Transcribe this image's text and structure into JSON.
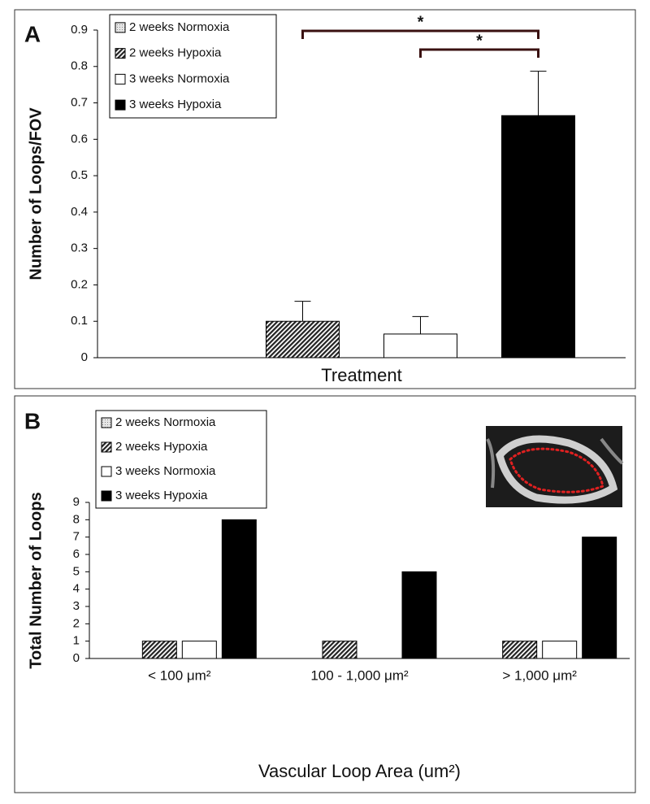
{
  "chart_data": [
    {
      "type": "bar",
      "title": "A",
      "categories": [
        null
      ],
      "series": [
        {
          "name": "2 weeks Normoxia",
          "color": "#d0d0d0",
          "hatch": "dots",
          "values": [
            0
          ],
          "errors": [
            null
          ]
        },
        {
          "name": "2 weeks Hypoxia",
          "color": "#3a3a3a",
          "hatch": "diagonal",
          "values": [
            0.1
          ],
          "errors": [
            0.055
          ]
        },
        {
          "name": "3 weeks Normoxia",
          "color": "#ffffff",
          "values": [
            0.065
          ],
          "errors": [
            0.048
          ]
        },
        {
          "name": "3 weeks Hypoxia",
          "color": "#000000",
          "values": [
            0.665
          ],
          "errors": [
            0.122
          ]
        }
      ],
      "ylabel": "Number of Loops/FOV",
      "xlabel": "Treatment",
      "ylim": [
        0,
        0.9
      ],
      "yticks": [
        0,
        0.1,
        0.2,
        0.3,
        0.4,
        0.5,
        0.6,
        0.7,
        0.8,
        0.9
      ],
      "legend": "top-left",
      "annotations": [
        "*",
        "*"
      ]
    },
    {
      "type": "bar",
      "title": "B",
      "categories": [
        "< 100 μm²",
        "100 - 1,000 μm²",
        "> 1,000 μm²"
      ],
      "series": [
        {
          "name": "2 weeks Normoxia",
          "color": "#d0d0d0",
          "hatch": "dots",
          "values": [
            0,
            0,
            0
          ]
        },
        {
          "name": "2 weeks Hypoxia",
          "color": "#3a3a3a",
          "hatch": "diagonal",
          "values": [
            1,
            1,
            1
          ]
        },
        {
          "name": "3 weeks Normoxia",
          "color": "#ffffff",
          "values": [
            1,
            0,
            1
          ]
        },
        {
          "name": "3 weeks Hypoxia",
          "color": "#000000",
          "values": [
            8,
            5,
            7
          ]
        }
      ],
      "ylabel": "Total Number of Loops",
      "xlabel": "Vascular Loop Area (um²)",
      "ylim": [
        0,
        9
      ],
      "yticks": [
        0,
        1,
        2,
        3,
        4,
        5,
        6,
        7,
        8,
        9
      ],
      "legend": "top-left"
    }
  ]
}
